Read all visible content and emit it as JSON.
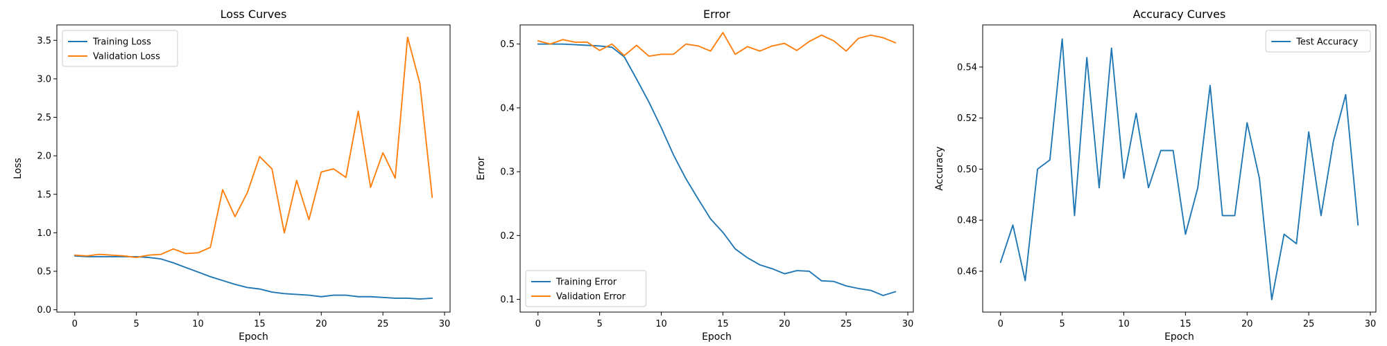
{
  "chart_data": [
    {
      "type": "line",
      "title": "Loss Curves",
      "xlabel": "Epoch",
      "ylabel": "Loss",
      "xlim": [
        -1.45,
        30.45
      ],
      "ylim": [
        -0.03,
        3.7
      ],
      "xticks": [
        0,
        5,
        10,
        15,
        20,
        25,
        30
      ],
      "yticks": [
        0.0,
        0.5,
        1.0,
        1.5,
        2.0,
        2.5,
        3.0,
        3.5
      ],
      "ytick_format": 1,
      "grid": false,
      "legend_position": "top-left",
      "x": [
        0,
        1,
        2,
        3,
        4,
        5,
        6,
        7,
        8,
        9,
        10,
        11,
        12,
        13,
        14,
        15,
        16,
        17,
        18,
        19,
        20,
        21,
        22,
        23,
        24,
        25,
        26,
        27,
        28,
        29
      ],
      "series": [
        {
          "name": "Training Loss",
          "color": "#1f77b4",
          "values": [
            0.7,
            0.69,
            0.69,
            0.69,
            0.69,
            0.69,
            0.68,
            0.66,
            0.61,
            0.55,
            0.49,
            0.43,
            0.38,
            0.33,
            0.29,
            0.27,
            0.23,
            0.21,
            0.2,
            0.19,
            0.17,
            0.19,
            0.19,
            0.17,
            0.17,
            0.16,
            0.15,
            0.15,
            0.14,
            0.15
          ]
        },
        {
          "name": "Validation Loss",
          "color": "#ff7f0e",
          "values": [
            0.71,
            0.7,
            0.72,
            0.71,
            0.7,
            0.68,
            0.71,
            0.72,
            0.79,
            0.73,
            0.74,
            0.81,
            1.56,
            1.21,
            1.52,
            1.99,
            1.83,
            1.0,
            1.68,
            1.17,
            1.79,
            1.83,
            1.72,
            2.58,
            1.59,
            2.04,
            1.71,
            3.54,
            2.94,
            1.46
          ]
        }
      ]
    },
    {
      "type": "line",
      "title": "Error",
      "xlabel": "Epoch",
      "ylabel": "Error",
      "xlim": [
        -1.45,
        30.45
      ],
      "ylim": [
        0.08,
        0.53
      ],
      "xticks": [
        0,
        5,
        10,
        15,
        20,
        25,
        30
      ],
      "yticks": [
        0.1,
        0.2,
        0.3,
        0.4,
        0.5
      ],
      "ytick_format": 1,
      "grid": false,
      "legend_position": "bottom-left",
      "x": [
        0,
        1,
        2,
        3,
        4,
        5,
        6,
        7,
        8,
        9,
        10,
        11,
        12,
        13,
        14,
        15,
        16,
        17,
        18,
        19,
        20,
        21,
        22,
        23,
        24,
        25,
        26,
        27,
        28,
        29
      ],
      "series": [
        {
          "name": "Training Error",
          "color": "#1f77b4",
          "values": [
            0.5,
            0.5,
            0.5,
            0.499,
            0.498,
            0.497,
            0.495,
            0.48,
            0.445,
            0.409,
            0.369,
            0.326,
            0.289,
            0.257,
            0.226,
            0.205,
            0.179,
            0.165,
            0.154,
            0.148,
            0.14,
            0.145,
            0.144,
            0.129,
            0.128,
            0.121,
            0.117,
            0.114,
            0.106,
            0.112
          ]
        },
        {
          "name": "Validation Error",
          "color": "#ff7f0e",
          "values": [
            0.505,
            0.5,
            0.507,
            0.503,
            0.503,
            0.49,
            0.5,
            0.482,
            0.498,
            0.481,
            0.484,
            0.484,
            0.5,
            0.497,
            0.489,
            0.518,
            0.484,
            0.496,
            0.489,
            0.497,
            0.501,
            0.49,
            0.504,
            0.514,
            0.505,
            0.489,
            0.509,
            0.514,
            0.51,
            0.502
          ]
        }
      ]
    },
    {
      "type": "line",
      "title": "Accuracy Curves",
      "xlabel": "Epoch",
      "ylabel": "Accuracy",
      "xlim": [
        -1.45,
        30.45
      ],
      "ylim": [
        0.444,
        0.5565
      ],
      "xticks": [
        0,
        5,
        10,
        15,
        20,
        25,
        30
      ],
      "yticks": [
        0.46,
        0.48,
        0.5,
        0.52,
        0.54
      ],
      "ytick_format": 2,
      "grid": false,
      "legend_position": "top-right",
      "x": [
        0,
        1,
        2,
        3,
        4,
        5,
        6,
        7,
        8,
        9,
        10,
        11,
        12,
        13,
        14,
        15,
        16,
        17,
        18,
        19,
        20,
        21,
        22,
        23,
        24,
        25,
        26,
        27,
        28,
        29
      ],
      "series": [
        {
          "name": "Test Accuracy",
          "color": "#1f77b4",
          "values": [
            0.4635,
            0.4781,
            0.4563,
            0.5,
            0.5036,
            0.551,
            0.4818,
            0.5437,
            0.4927,
            0.5474,
            0.4964,
            0.5219,
            0.4927,
            0.5073,
            0.5073,
            0.4745,
            0.4927,
            0.5328,
            0.4818,
            0.4818,
            0.5182,
            0.4964,
            0.4489,
            0.4745,
            0.4708,
            0.5146,
            0.4818,
            0.5109,
            0.5292,
            0.4781
          ]
        }
      ]
    }
  ]
}
